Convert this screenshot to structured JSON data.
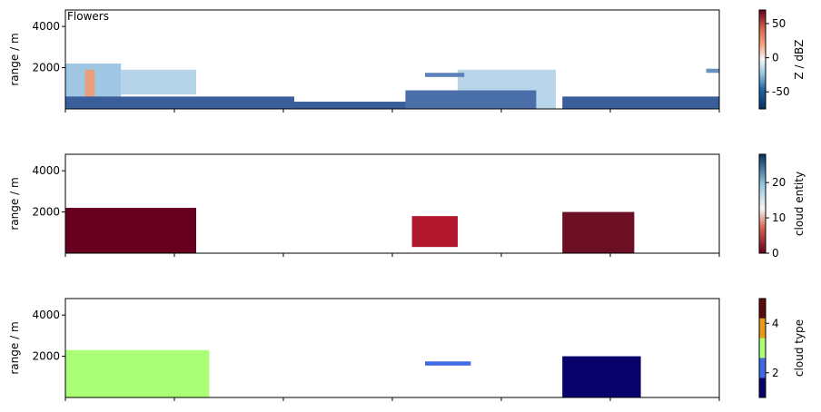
{
  "figure_label": "Flowers",
  "chart_data": [
    {
      "type": "heatmap",
      "ylabel": "range / m",
      "yticks": [
        2000,
        4000
      ],
      "ylim": [
        0,
        4800
      ],
      "x_ticks_count": 7,
      "colorbar": {
        "label": "Z / dBZ",
        "ticks": [
          -50,
          0,
          50
        ],
        "range": [
          -75,
          70
        ],
        "colormap": "RdBu_r"
      },
      "regions": [
        {
          "x": [
            0.0,
            0.085
          ],
          "y": [
            0,
            2200
          ],
          "color": "#9fc7e3"
        },
        {
          "x": [
            0.085,
            0.2
          ],
          "y": [
            700,
            1900
          ],
          "color": "#b5d4ea"
        },
        {
          "x": [
            0.03,
            0.045
          ],
          "y": [
            0,
            1900
          ],
          "color": "#e8a07a"
        },
        {
          "x": [
            0.0,
            0.35
          ],
          "y": [
            0,
            600
          ],
          "color": "#3a5e9c"
        },
        {
          "x": [
            0.35,
            0.73
          ],
          "y": [
            0,
            350
          ],
          "color": "#3a5e9c"
        },
        {
          "x": [
            0.66,
            0.66
          ],
          "y": [
            0,
            0
          ],
          "color": "#3a5e9c"
        },
        {
          "x": [
            0.6,
            0.75
          ],
          "y": [
            0,
            1900
          ],
          "color": "#b8d5ea"
        },
        {
          "x": [
            0.76,
            1.0
          ],
          "y": [
            0,
            600
          ],
          "color": "#3a5e9c"
        },
        {
          "x": [
            0.52,
            0.72
          ],
          "y": [
            0,
            900
          ],
          "color": "#4a6ea8"
        },
        {
          "x": [
            0.55,
            0.61
          ],
          "y": [
            1550,
            1750
          ],
          "color": "#5a82b9"
        },
        {
          "x": [
            0.98,
            1.0
          ],
          "y": [
            1750,
            1950
          ],
          "color": "#6a92c2"
        }
      ]
    },
    {
      "type": "heatmap",
      "ylabel": "range / m",
      "yticks": [
        2000,
        4000
      ],
      "ylim": [
        0,
        4800
      ],
      "x_ticks_count": 7,
      "colorbar": {
        "label": "cloud entity",
        "ticks": [
          0,
          10,
          20
        ],
        "range": [
          0,
          28
        ],
        "colormap": "RdBu"
      },
      "regions": [
        {
          "x": [
            0.0,
            0.2
          ],
          "y": [
            0,
            2200
          ],
          "color": "#67001f"
        },
        {
          "x": [
            0.53,
            0.6
          ],
          "y": [
            300,
            1800
          ],
          "color": "#b2182b"
        },
        {
          "x": [
            0.76,
            0.87
          ],
          "y": [
            0,
            2000
          ],
          "color": "#6d0f24"
        }
      ]
    },
    {
      "type": "heatmap",
      "ylabel": "range / m",
      "yticks": [
        2000,
        4000
      ],
      "ylim": [
        0,
        4800
      ],
      "x_ticks_count": 7,
      "colorbar": {
        "label": "cloud type",
        "ticks": [
          2,
          4
        ],
        "range": [
          1,
          5
        ],
        "levels": [
          "#08006b",
          "#4169e1",
          "#aaff77",
          "#e39d1b",
          "#5a0c0c"
        ]
      },
      "regions": [
        {
          "x": [
            0.0,
            0.22
          ],
          "y": [
            0,
            2300
          ],
          "color": "#aaff77"
        },
        {
          "x": [
            0.76,
            0.88
          ],
          "y": [
            0,
            2000
          ],
          "color": "#08006b"
        },
        {
          "x": [
            0.55,
            0.62
          ],
          "y": [
            1550,
            1750
          ],
          "color": "#4169e1"
        }
      ]
    }
  ]
}
